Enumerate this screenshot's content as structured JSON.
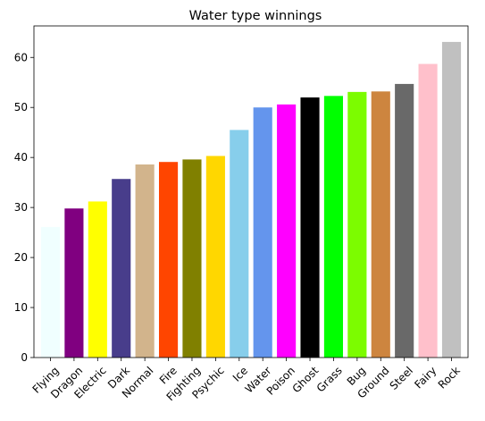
{
  "chart_data": {
    "type": "bar",
    "title": "Water type winnings",
    "xlabel": "",
    "ylabel": "",
    "ylim": [
      0,
      66.3
    ],
    "yticks": [
      0,
      10,
      20,
      30,
      40,
      50,
      60
    ],
    "grid": false,
    "categories": [
      "Flying",
      "Dragon",
      "Electric",
      "Dark",
      "Normal",
      "Fire",
      "Fighting",
      "Psychic",
      "Ice",
      "Water",
      "Poison",
      "Ghost",
      "Grass",
      "Bug",
      "Ground",
      "Steel",
      "Fairy",
      "Rock"
    ],
    "values": [
      26.1,
      29.8,
      31.2,
      35.7,
      38.6,
      39.1,
      39.6,
      40.3,
      45.5,
      50.0,
      50.6,
      52.0,
      52.3,
      53.1,
      53.2,
      54.7,
      58.7,
      63.1
    ],
    "colors": [
      "#f0ffff",
      "#800080",
      "#ffff00",
      "#483d8b",
      "#d2b48c",
      "#ff4500",
      "#808000",
      "#ffd700",
      "#87ceeb",
      "#6495ed",
      "#ff00ff",
      "#000000",
      "#00ff00",
      "#7cfc00",
      "#cd853f",
      "#696969",
      "#ffc0cb",
      "#c0c0c0"
    ]
  }
}
